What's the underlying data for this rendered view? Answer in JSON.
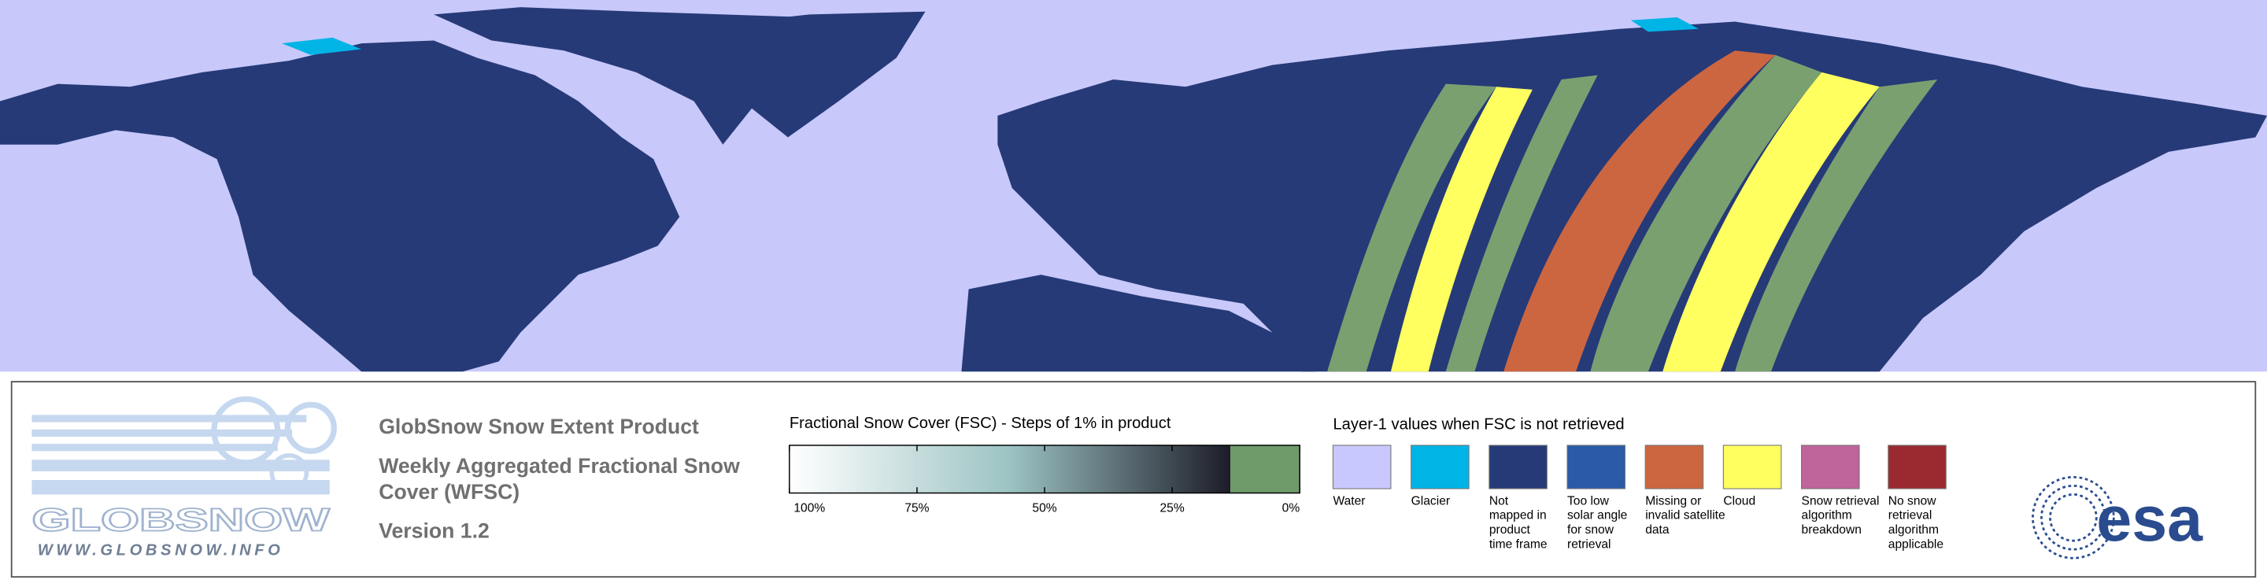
{
  "logo": {
    "name": "GLOBSNOW",
    "url": "WWW.GLOBSNOW.INFO"
  },
  "product": {
    "title": "GlobSnow Snow Extent Product",
    "subtitle": [
      "Weekly Aggregated Fractional Snow",
      "Cover (WFSC)"
    ],
    "version": "Version 1.2"
  },
  "colorbar": {
    "title": "Fractional Snow Cover (FSC) - Steps of 1% in product",
    "colors": [
      "#ffffff",
      "#9cc3c3",
      "#1c1c28"
    ],
    "zero_color": "#6f9a6a",
    "ticks": [
      {
        "value": 100,
        "label": "100%"
      },
      {
        "value": 75,
        "label": "75%"
      },
      {
        "value": 50,
        "label": "50%"
      },
      {
        "value": 25,
        "label": "25%"
      },
      {
        "value": 0,
        "label": "0%"
      }
    ]
  },
  "layer_legend": {
    "title": "Layer-1 values when FSC is not retrieved",
    "items": [
      {
        "color": "#c8c8ff",
        "label": [
          "Water"
        ]
      },
      {
        "color": "#00b4e6",
        "label": [
          "Glacier"
        ]
      },
      {
        "color": "#263a78",
        "label": [
          "Not",
          "mapped in",
          "product",
          "time frame"
        ]
      },
      {
        "color": "#2a5aa8",
        "label": [
          "Too low",
          "solar angle",
          "for snow",
          "retrieval"
        ]
      },
      {
        "color": "#cc6640",
        "label": [
          "Missing or",
          "invalid satellite",
          "data"
        ]
      },
      {
        "color": "#ffff60",
        "label": [
          "Cloud"
        ]
      },
      {
        "color": "#c0649c",
        "label": [
          "Snow retrieval",
          "algorithm",
          "breakdown"
        ]
      },
      {
        "color": "#9a2a30",
        "label": [
          "No snow",
          "retrieval",
          "algorithm",
          "applicable"
        ]
      }
    ]
  },
  "agency": "esa"
}
